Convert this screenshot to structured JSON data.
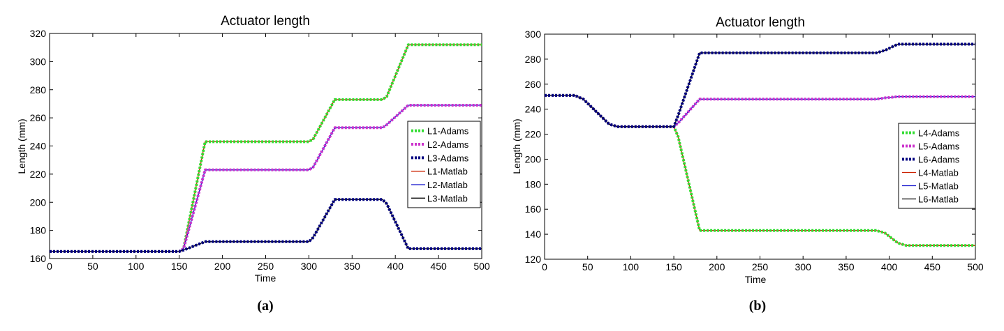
{
  "chart_data": [
    {
      "type": "line",
      "title": "Actuator length",
      "xlabel": "Time",
      "ylabel": "Length (mm)",
      "panel_label": "(a)",
      "xlim": [
        0,
        500
      ],
      "ylim": [
        160,
        320
      ],
      "xticks": [
        0,
        50,
        100,
        150,
        200,
        250,
        300,
        350,
        400,
        450,
        500
      ],
      "yticks": [
        160,
        180,
        200,
        220,
        240,
        260,
        280,
        300,
        320
      ],
      "grid": false,
      "legend_position": "right",
      "series": [
        {
          "name": "L1-Adams",
          "color": "#33dd33",
          "style": "dotted",
          "x": [
            0,
            150,
            155,
            180,
            300,
            305,
            330,
            385,
            390,
            415,
            500
          ],
          "y": [
            165,
            165,
            167,
            243,
            243,
            245,
            273,
            273,
            275,
            312,
            312
          ]
        },
        {
          "name": "L2-Adams",
          "color": "#cc33cc",
          "style": "dotted",
          "x": [
            0,
            150,
            155,
            180,
            300,
            305,
            330,
            385,
            390,
            415,
            500
          ],
          "y": [
            165,
            165,
            167,
            223,
            223,
            225,
            253,
            253,
            255,
            269,
            269
          ]
        },
        {
          "name": "L3-Adams",
          "color": "#000080",
          "style": "dotted",
          "x": [
            0,
            150,
            155,
            180,
            300,
            305,
            330,
            385,
            390,
            415,
            500
          ],
          "y": [
            165,
            165,
            166,
            172,
            172,
            175,
            202,
            202,
            199,
            167,
            167
          ]
        },
        {
          "name": "L1-Matlab",
          "color": "#cc2200",
          "style": "solid",
          "x": [
            0,
            150,
            155,
            180,
            300,
            305,
            330,
            385,
            390,
            415,
            500
          ],
          "y": [
            165,
            165,
            167,
            243,
            243,
            245,
            273,
            273,
            275,
            312,
            312
          ]
        },
        {
          "name": "L2-Matlab",
          "color": "#1111cc",
          "style": "solid",
          "x": [
            0,
            150,
            155,
            180,
            300,
            305,
            330,
            385,
            390,
            415,
            500
          ],
          "y": [
            165,
            165,
            167,
            223,
            223,
            225,
            253,
            253,
            255,
            269,
            269
          ]
        },
        {
          "name": "L3-Matlab",
          "color": "#000000",
          "style": "solid",
          "x": [
            0,
            150,
            155,
            180,
            300,
            305,
            330,
            385,
            390,
            415,
            500
          ],
          "y": [
            165,
            165,
            166,
            172,
            172,
            175,
            202,
            202,
            199,
            167,
            167
          ]
        }
      ]
    },
    {
      "type": "line",
      "title": "Actuator length",
      "xlabel": "Time",
      "ylabel": "Length (mm)",
      "panel_label": "(b)",
      "xlim": [
        0,
        500
      ],
      "ylim": [
        120,
        300
      ],
      "xticks": [
        0,
        50,
        100,
        150,
        200,
        250,
        300,
        350,
        400,
        450,
        500
      ],
      "yticks": [
        120,
        140,
        160,
        180,
        200,
        220,
        240,
        260,
        280,
        300
      ],
      "grid": false,
      "legend_position": "right",
      "series": [
        {
          "name": "L4-Adams",
          "color": "#33dd33",
          "style": "dotted",
          "x": [
            0,
            35,
            45,
            75,
            85,
            150,
            155,
            180,
            385,
            395,
            410,
            420,
            500
          ],
          "y": [
            251,
            251,
            248,
            228,
            226,
            226,
            218,
            143,
            143,
            141,
            133,
            131,
            131
          ]
        },
        {
          "name": "L5-Adams",
          "color": "#cc33cc",
          "style": "dotted",
          "x": [
            0,
            35,
            45,
            75,
            85,
            150,
            155,
            180,
            385,
            395,
            410,
            420,
            500
          ],
          "y": [
            251,
            251,
            248,
            228,
            226,
            226,
            229,
            248,
            248,
            249,
            250,
            250,
            250
          ]
        },
        {
          "name": "L6-Adams",
          "color": "#000080",
          "style": "dotted",
          "x": [
            0,
            35,
            45,
            75,
            85,
            150,
            155,
            180,
            385,
            395,
            410,
            420,
            500
          ],
          "y": [
            251,
            251,
            248,
            228,
            226,
            226,
            235,
            285,
            285,
            287,
            292,
            292,
            292
          ]
        },
        {
          "name": "L4-Matlab",
          "color": "#cc2200",
          "style": "solid",
          "x": [
            0,
            35,
            45,
            75,
            85,
            150,
            155,
            180,
            385,
            395,
            410,
            420,
            500
          ],
          "y": [
            251,
            251,
            248,
            228,
            226,
            226,
            218,
            143,
            143,
            141,
            133,
            131,
            131
          ]
        },
        {
          "name": "L5-Matlab",
          "color": "#1111cc",
          "style": "solid",
          "x": [
            0,
            35,
            45,
            75,
            85,
            150,
            155,
            180,
            385,
            395,
            410,
            420,
            500
          ],
          "y": [
            251,
            251,
            248,
            228,
            226,
            226,
            229,
            248,
            248,
            249,
            250,
            250,
            250
          ]
        },
        {
          "name": "L6-Matlab",
          "color": "#000000",
          "style": "solid",
          "x": [
            0,
            35,
            45,
            75,
            85,
            150,
            155,
            180,
            385,
            395,
            410,
            420,
            500
          ],
          "y": [
            251,
            251,
            248,
            228,
            226,
            226,
            235,
            285,
            285,
            287,
            292,
            292,
            292
          ]
        }
      ]
    }
  ]
}
